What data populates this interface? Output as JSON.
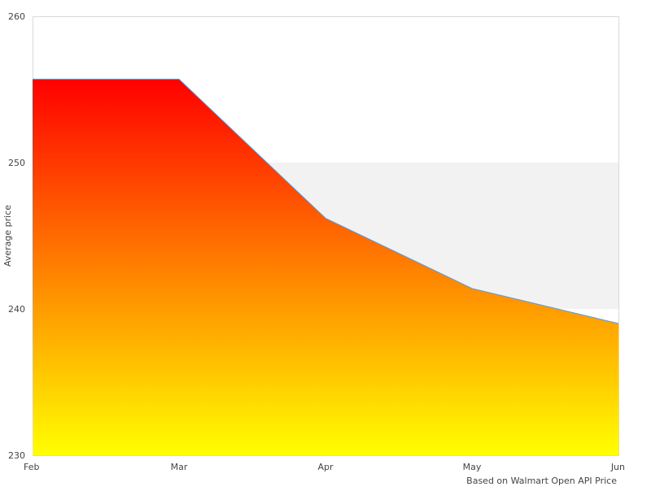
{
  "chart_data": {
    "type": "area",
    "title": "",
    "xlabel": "",
    "ylabel": "Average price",
    "categories": [
      "Feb",
      "Mar",
      "Apr",
      "May",
      "Jun"
    ],
    "values": [
      255.7,
      255.7,
      246.2,
      241.4,
      239.0
    ],
    "ylim": [
      230,
      260
    ],
    "yticks": [
      230,
      240,
      250,
      260
    ],
    "grid": "alternating horizontal bands",
    "band_color": "#f2f2f2",
    "fill_gradient": {
      "top": "#ff0000",
      "bottom": "#ffff00"
    },
    "line_color": "#5b9bd5",
    "credit": "Based on Walmart Open API Price"
  }
}
